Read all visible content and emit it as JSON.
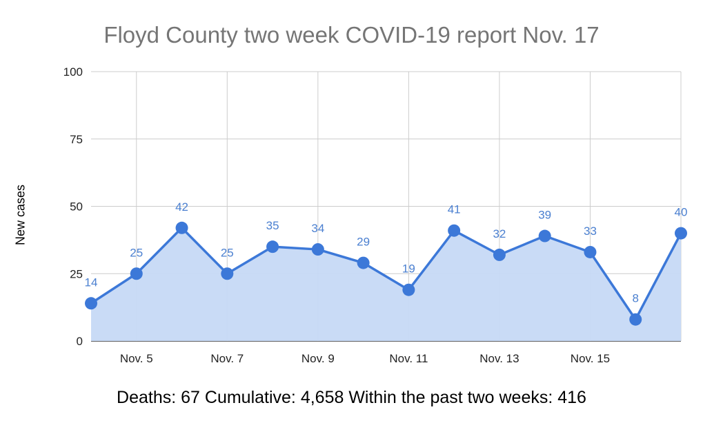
{
  "chart_data": {
    "type": "area",
    "title": "Floyd County two week COVID-19 report Nov. 17",
    "xlabel": "",
    "ylabel": "New cases",
    "ylim": [
      0,
      100
    ],
    "yticks": [
      0,
      25,
      50,
      75,
      100
    ],
    "x": [
      "Nov. 4",
      "Nov. 5",
      "Nov. 6",
      "Nov. 7",
      "Nov. 8",
      "Nov. 9",
      "Nov. 10",
      "Nov. 11",
      "Nov. 12",
      "Nov. 13",
      "Nov. 14",
      "Nov. 15",
      "Nov. 16",
      "Nov. 17"
    ],
    "xtick_labels": [
      "Nov. 5",
      "Nov. 7",
      "Nov. 9",
      "Nov. 11",
      "Nov. 13",
      "Nov. 15"
    ],
    "values": [
      14,
      25,
      42,
      25,
      35,
      34,
      29,
      19,
      41,
      32,
      39,
      33,
      8,
      40
    ],
    "grid": true,
    "legend": "none",
    "colors": {
      "line": "#3c78d8",
      "fill": "#c6d9f6",
      "label": "#4a7fd0",
      "title": "#757575"
    }
  },
  "footer": "Deaths: 67 Cumulative: 4,658 Within the past two weeks: 416"
}
